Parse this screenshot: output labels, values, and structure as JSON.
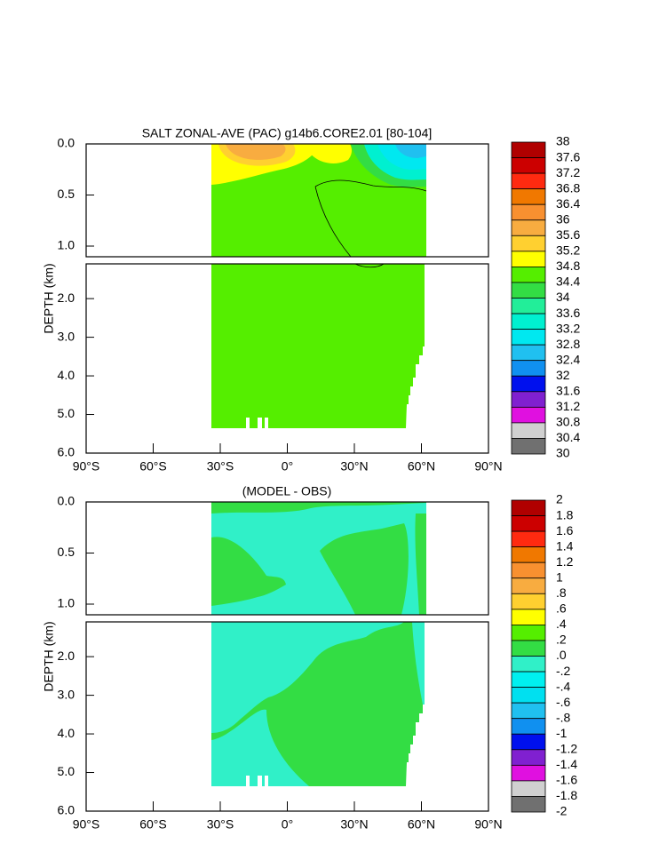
{
  "chart_data": [
    {
      "type": "contour",
      "title": "SALT ZONAL-AVE (PAC) g14b6.CORE2.01 [80-104]",
      "ylabel": "DEPTH (km)",
      "xlim": [
        -90,
        90
      ],
      "xticks": [
        {
          "value": -90,
          "label": "90°S"
        },
        {
          "value": -60,
          "label": "60°S"
        },
        {
          "value": -30,
          "label": "30°S"
        },
        {
          "value": 0,
          "label": "0°"
        },
        {
          "value": 30,
          "label": "30°N"
        },
        {
          "value": 60,
          "label": "60°N"
        },
        {
          "value": 90,
          "label": "90°N"
        }
      ],
      "ylim": [
        0,
        6
      ],
      "ysplit": 1.1,
      "yticks": [
        {
          "value": 0,
          "label": "0.0"
        },
        {
          "value": 0.5,
          "label": "0.5"
        },
        {
          "value": 1,
          "label": "1.0"
        },
        {
          "value": 2,
          "label": "2.0"
        },
        {
          "value": 3,
          "label": "3.0"
        },
        {
          "value": 4,
          "label": "4.0"
        },
        {
          "value": 5,
          "label": "5.0"
        },
        {
          "value": 6,
          "label": "6.0"
        }
      ],
      "levels": [
        38,
        37.6,
        37.2,
        36.8,
        36.4,
        36,
        35.6,
        35.2,
        34.8,
        34.4,
        34,
        33.6,
        33.2,
        32.8,
        32.4,
        32,
        31.6,
        31.2,
        30.8,
        30.4,
        30
      ],
      "colors": [
        "#b00000",
        "#cc0000",
        "#ff2a10",
        "#f07800",
        "#f89030",
        "#f8ac40",
        "#ffd030",
        "#ffff00",
        "#55ee00",
        "#33dd44",
        "#22ee99",
        "#00f0d0",
        "#00e8f0",
        "#20c0f0",
        "#1090f0",
        "#0010ee",
        "#8020d0",
        "#e010e0",
        "#d0d0d0",
        "#707070"
      ]
    },
    {
      "type": "contour",
      "title": "(MODEL - OBS)",
      "ylabel": "DEPTH (km)",
      "xlim": [
        -90,
        90
      ],
      "xticks": [
        {
          "value": -90,
          "label": "90°S"
        },
        {
          "value": -60,
          "label": "60°S"
        },
        {
          "value": -30,
          "label": "30°S"
        },
        {
          "value": 0,
          "label": "0°"
        },
        {
          "value": 30,
          "label": "30°N"
        },
        {
          "value": 60,
          "label": "60°N"
        },
        {
          "value": 90,
          "label": "90°N"
        }
      ],
      "ylim": [
        0,
        6
      ],
      "ysplit": 1.1,
      "yticks": [
        {
          "value": 0,
          "label": "0.0"
        },
        {
          "value": 0.5,
          "label": "0.5"
        },
        {
          "value": 1,
          "label": "1.0"
        },
        {
          "value": 2,
          "label": "2.0"
        },
        {
          "value": 3,
          "label": "3.0"
        },
        {
          "value": 4,
          "label": "4.0"
        },
        {
          "value": 5,
          "label": "5.0"
        },
        {
          "value": 6,
          "label": "6.0"
        }
      ],
      "levels": [
        2,
        1.8,
        1.6,
        1.4,
        1.2,
        1,
        {
          "value": 0.8,
          "label": ".8"
        },
        {
          "value": 0.6,
          "label": ".6"
        },
        {
          "value": 0.4,
          "label": ".4"
        },
        {
          "value": 0.2,
          "label": ".2"
        },
        {
          "value": 0,
          "label": ".0"
        },
        {
          "value": -0.2,
          "label": "-.2"
        },
        {
          "value": -0.4,
          "label": "-.4"
        },
        {
          "value": -0.6,
          "label": "-.6"
        },
        {
          "value": -0.8,
          "label": "-.8"
        },
        -1,
        -1.2,
        -1.4,
        -1.6,
        -1.8,
        -2
      ],
      "colors": [
        "#b00000",
        "#cc0000",
        "#ff2a10",
        "#f07800",
        "#f89030",
        "#f8ac40",
        "#ffd030",
        "#ffff00",
        "#55ee00",
        "#33dd44",
        "#30f0c8",
        "#00f0f0",
        "#00e0f0",
        "#20c0f0",
        "#1090f0",
        "#0010ee",
        "#8020d0",
        "#e010e0",
        "#d0d0d0",
        "#707070"
      ]
    }
  ]
}
